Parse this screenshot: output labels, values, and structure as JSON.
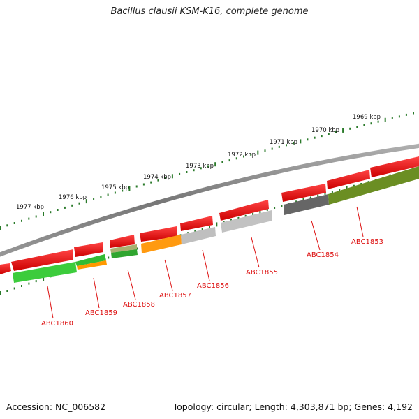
{
  "title": "Bacillus clausii KSM-K16, complete genome",
  "footer": {
    "accession": "Accession: NC_006582",
    "summary": "Topology: circular; Length: 4,303,871 bp; Genes: 4,192"
  },
  "kbp_labels": [
    "1969 kbp",
    "1970 kbp",
    "1971 kbp",
    "1972 kbp",
    "1973 kbp",
    "1974 kbp",
    "1975 kbp",
    "1976 kbp",
    "1977 kbp"
  ],
  "gene_labels": [
    "ABC1853",
    "ABC1854",
    "ABC1855",
    "ABC1856",
    "ABC1857",
    "ABC1858",
    "ABC1859",
    "ABC1860"
  ],
  "colors": {
    "strand_arrow": "#ee1111",
    "backbone": "#888888",
    "ticks": "#2a7a2a",
    "label_red": "#dd1111",
    "cog_green": "#33cc33",
    "cog_orange": "#ff9900",
    "cog_olive": "#6b8e23",
    "cog_gray": "#bbbbbb",
    "cog_darkgray": "#666666"
  }
}
